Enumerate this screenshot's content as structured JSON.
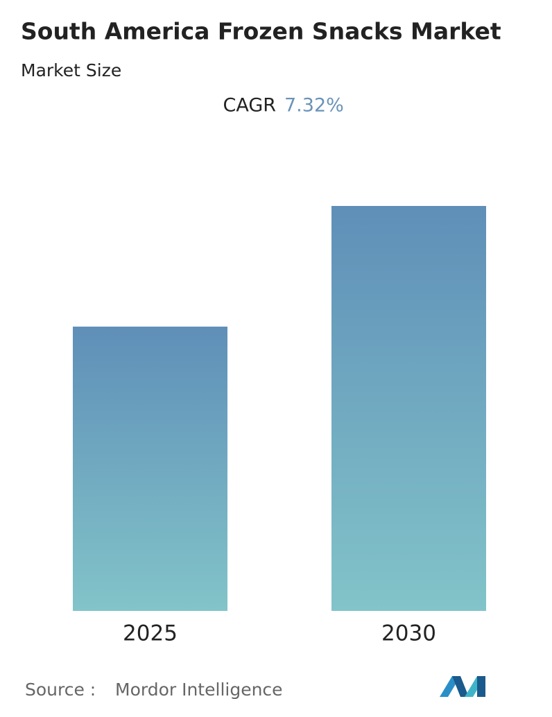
{
  "chart_data": {
    "type": "bar",
    "title": "South America Frozen Snacks Market",
    "subtitle": "Market Size",
    "cagr_label": "CAGR",
    "cagr_value": "7.32%",
    "categories": [
      "2025",
      "2030"
    ],
    "values": [
      70.2,
      100
    ],
    "color_top": "#5f8fb8",
    "color_bottom": "#82c4c9",
    "source_label": "Source :",
    "source": "Mordor Intelligence"
  }
}
